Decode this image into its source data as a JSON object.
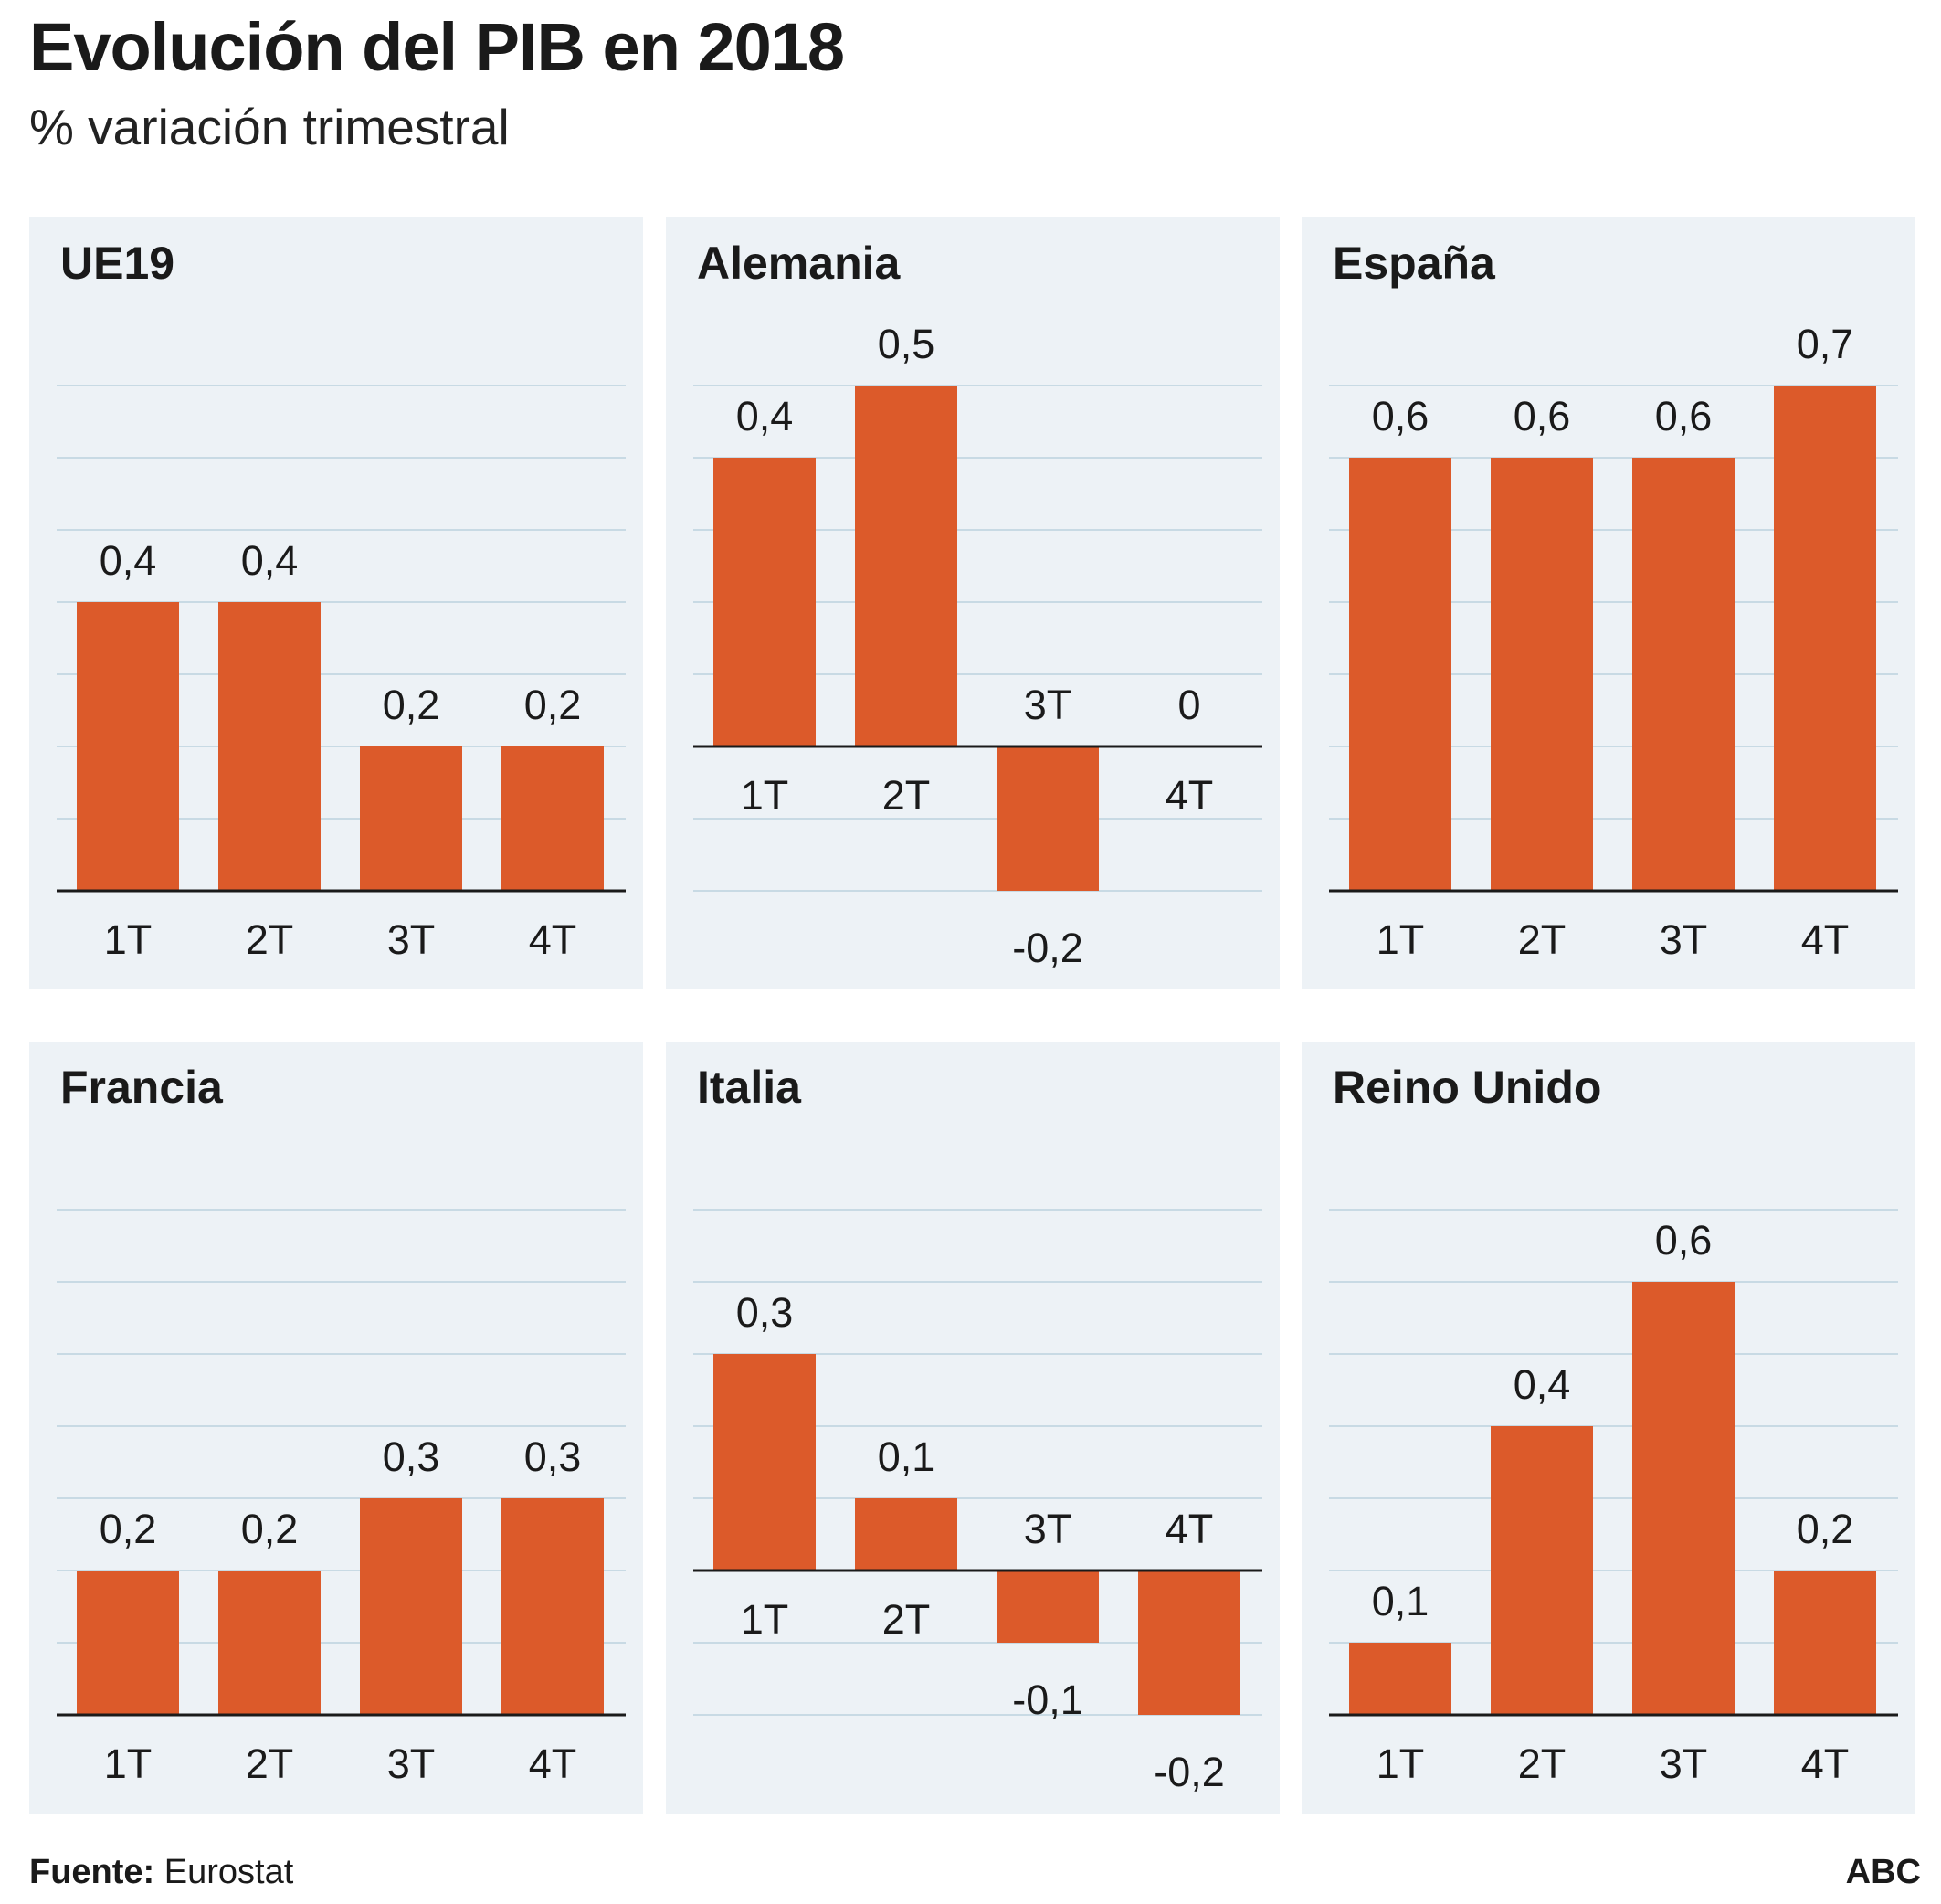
{
  "title": "Evolución del PIB en 2018",
  "subtitle": "% variación trimestral",
  "colors": {
    "bar": "#dc5a2a",
    "panel_bg": "#edf2f6",
    "grid": "#c8dae4",
    "axis": "#1a1a1a"
  },
  "chart_data": [
    {
      "type": "bar",
      "title": "UE19",
      "categories": [
        "1T",
        "2T",
        "3T",
        "4T"
      ],
      "values": [
        0.4,
        0.4,
        0.2,
        0.2
      ],
      "labels": [
        "0,4",
        "0,4",
        "0,2",
        "0,2"
      ],
      "grid_step": 0.1,
      "ylim": [
        0,
        0.7
      ]
    },
    {
      "type": "bar",
      "title": "Alemania",
      "categories": [
        "1T",
        "2T",
        "3T",
        "4T"
      ],
      "values": [
        0.4,
        0.5,
        -0.2,
        0
      ],
      "labels": [
        "0,4",
        "0,5",
        "-0,2",
        "0"
      ],
      "grid_step": 0.1,
      "ylim": [
        -0.2,
        0.5
      ]
    },
    {
      "type": "bar",
      "title": "España",
      "categories": [
        "1T",
        "2T",
        "3T",
        "4T"
      ],
      "values": [
        0.6,
        0.6,
        0.6,
        0.7
      ],
      "labels": [
        "0,6",
        "0,6",
        "0,6",
        "0,7"
      ],
      "grid_step": 0.1,
      "ylim": [
        0,
        0.7
      ]
    },
    {
      "type": "bar",
      "title": "Francia",
      "categories": [
        "1T",
        "2T",
        "3T",
        "4T"
      ],
      "values": [
        0.2,
        0.2,
        0.3,
        0.3
      ],
      "labels": [
        "0,2",
        "0,2",
        "0,3",
        "0,3"
      ],
      "grid_step": 0.1,
      "ylim": [
        0,
        0.7
      ]
    },
    {
      "type": "bar",
      "title": "Italia",
      "categories": [
        "1T",
        "2T",
        "3T",
        "4T"
      ],
      "values": [
        0.3,
        0.1,
        -0.1,
        -0.2
      ],
      "labels": [
        "0,3",
        "0,1",
        "-0,1",
        "-0,2"
      ],
      "grid_step": 0.1,
      "ylim": [
        -0.2,
        0.5
      ]
    },
    {
      "type": "bar",
      "title": "Reino Unido",
      "categories": [
        "1T",
        "2T",
        "3T",
        "4T"
      ],
      "values": [
        0.1,
        0.4,
        0.6,
        0.2
      ],
      "labels": [
        "0,1",
        "0,4",
        "0,6",
        "0,2"
      ],
      "grid_step": 0.1,
      "ylim": [
        0,
        0.7
      ]
    }
  ],
  "footer": {
    "source_label": "Fuente:",
    "source": "Eurostat",
    "brand": "ABC"
  }
}
